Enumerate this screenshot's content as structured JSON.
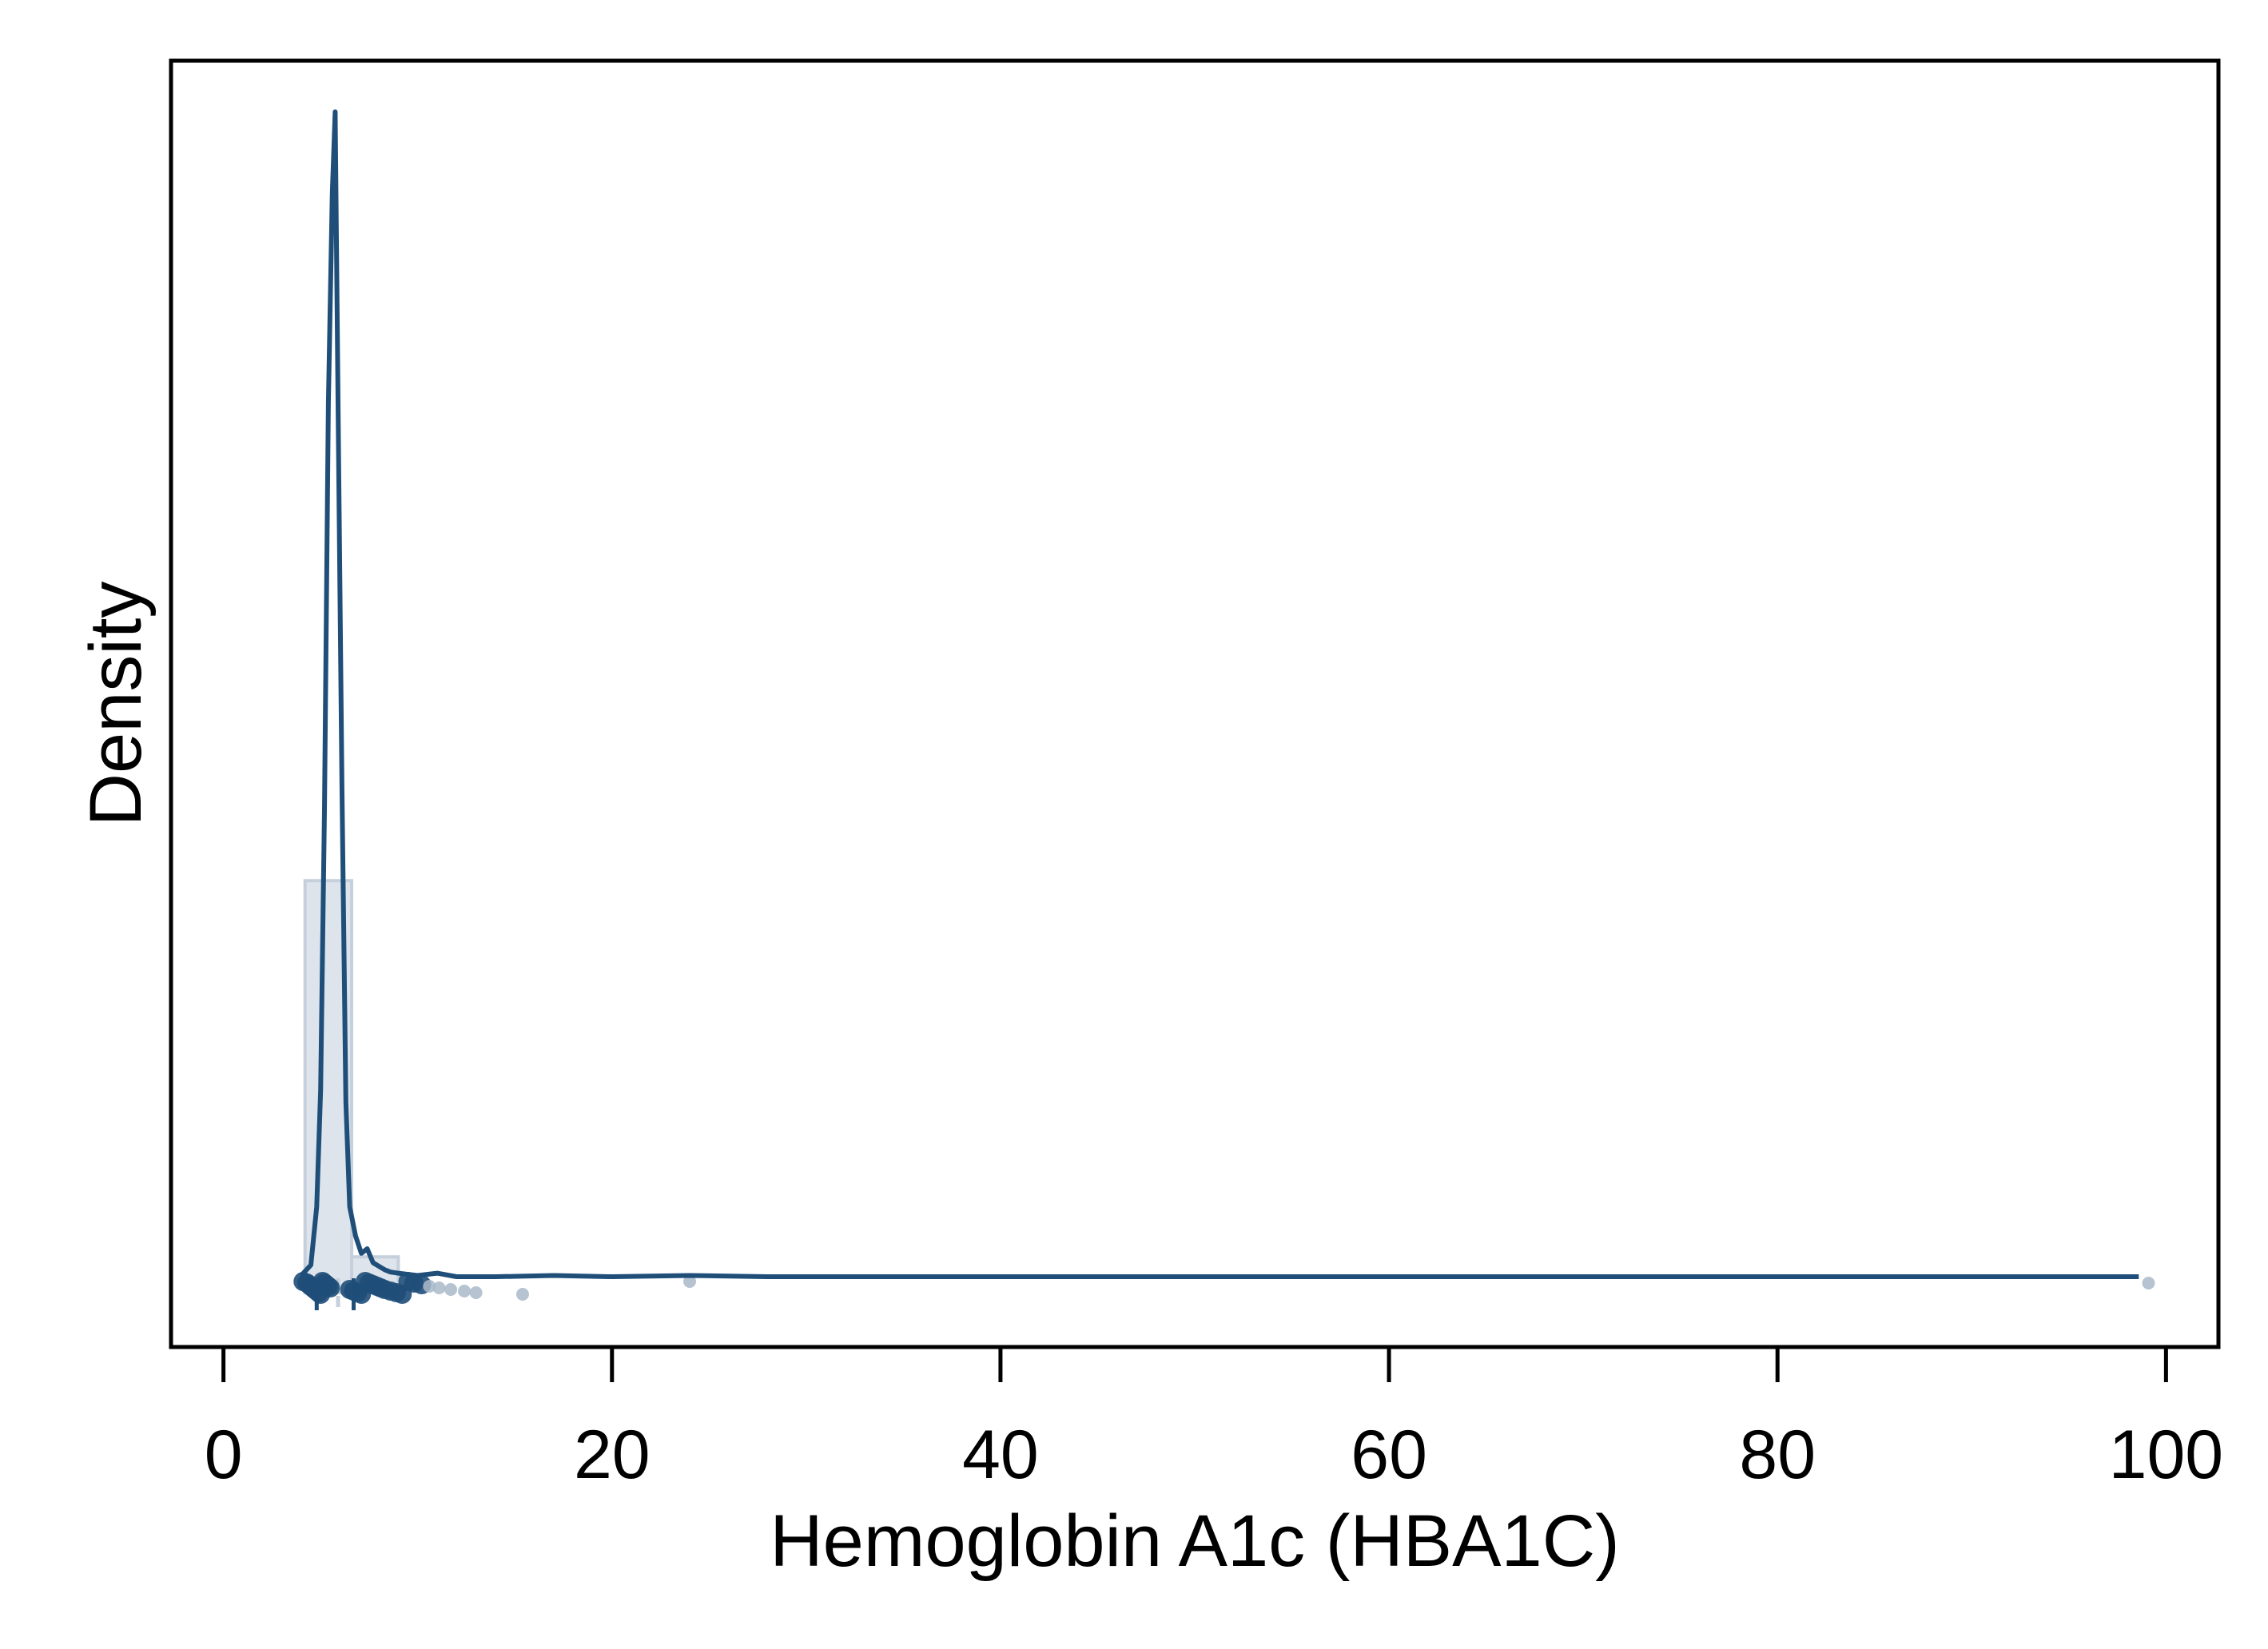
{
  "chart_data": {
    "type": "area",
    "title": "",
    "xlabel": "Hemoglobin A1c (HBA1C)",
    "ylabel": "Density",
    "xlim": [
      -2.7,
      102.7
    ],
    "ylim": [
      -0.03,
      1.0
    ],
    "x_ticks": [
      0,
      20,
      40,
      60,
      80,
      100
    ],
    "y_ticks_shown": false,
    "grid": false,
    "legend": "none",
    "colors": {
      "line": "#1f4e79",
      "histogram_fill": "#dde4ec",
      "histogram_edge": "#c5d0dc",
      "points_light": "#a9b8c9",
      "points_dark": "#1f4e79",
      "frame": "#000000"
    },
    "histogram": [
      {
        "x0": 4.2,
        "x1": 6.6,
        "density": 0.34
      },
      {
        "x0": 6.6,
        "x1": 9.0,
        "density": 0.017
      }
    ],
    "kde": {
      "x": [
        4.0,
        4.5,
        4.8,
        5.0,
        5.2,
        5.4,
        5.6,
        5.75,
        5.9,
        6.1,
        6.3,
        6.5,
        6.8,
        7.1,
        7.4,
        7.7,
        8.0,
        8.3,
        8.6,
        9.0,
        9.5,
        10.0,
        11.0,
        12.0,
        14.0,
        17.0,
        20.0,
        24.0,
        28.0,
        40.0,
        60.0,
        80.0,
        98.6
      ],
      "y": [
        0.001,
        0.01,
        0.06,
        0.16,
        0.4,
        0.75,
        0.93,
        1.0,
        0.75,
        0.42,
        0.15,
        0.06,
        0.035,
        0.02,
        0.024,
        0.012,
        0.009,
        0.006,
        0.004,
        0.003,
        0.002,
        0.001,
        0.003,
        0.0,
        0.0,
        0.001,
        0.0,
        0.001,
        0.0,
        0.0,
        0.0,
        0.0,
        0.0
      ]
    },
    "rug_points": [
      4.1,
      4.3,
      4.4,
      4.5,
      4.6,
      4.7,
      4.8,
      4.9,
      5.0,
      5.1,
      5.2,
      5.3,
      5.4,
      5.5,
      6.5,
      6.7,
      6.9,
      7.1,
      7.3,
      7.5,
      7.7,
      7.9,
      8.1,
      8.3,
      8.6,
      8.9,
      9.2,
      9.5,
      9.8,
      10.2,
      10.6,
      11.1,
      11.7,
      12.4,
      13.0,
      15.4,
      24.0,
      99.1
    ],
    "reference_lines": [
      4.8,
      5.9,
      6.7
    ]
  }
}
